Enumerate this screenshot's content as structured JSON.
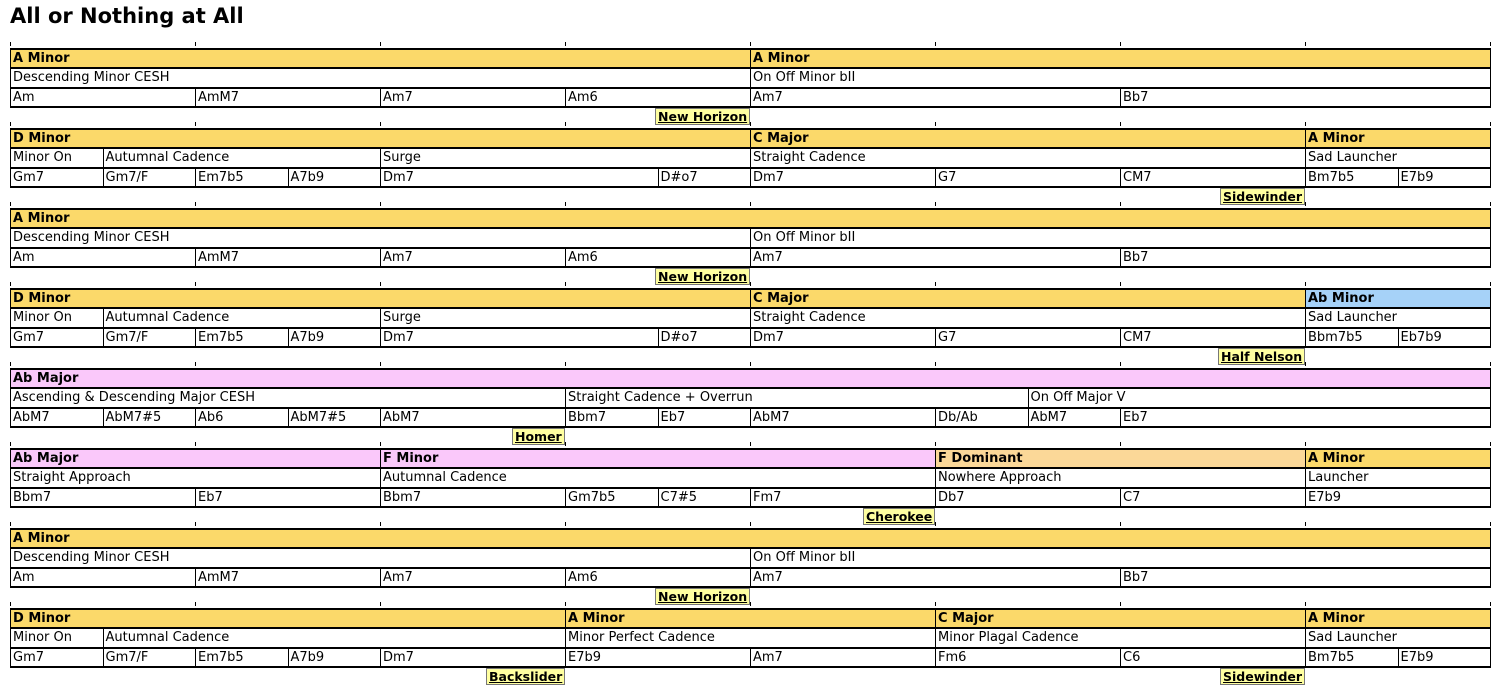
{
  "title": "All or Nothing at All",
  "colors": {
    "A Minor": "#fbd96a",
    "D Minor": "#fbd96a",
    "C Major": "#fbd96a",
    "Ab Minor": "#a6d2f8",
    "Ab Major": "#fac8fa",
    "F Minor": "#fac8fa",
    "F Dominant": "#fbd898"
  },
  "lines": [
    {
      "keys": [
        {
          "label": "A Minor",
          "span": 4
        },
        {
          "label": "A Minor",
          "span": 4
        }
      ],
      "bricks": [
        {
          "label": "Descending Minor CESH",
          "span": 4
        },
        {
          "label": "On Off Minor bII",
          "span": 4
        }
      ],
      "chords": [
        {
          "label": "Am",
          "span": 1
        },
        {
          "label": "AmM7",
          "span": 1
        },
        {
          "label": "Am7",
          "span": 1
        },
        {
          "label": "Am6",
          "span": 1
        },
        {
          "label": "Am7",
          "span": 2
        },
        {
          "label": "Bb7",
          "span": 2
        }
      ],
      "joins": [
        {
          "label": "New Horizon",
          "at": 4
        }
      ]
    },
    {
      "keys": [
        {
          "label": "D Minor",
          "span": 4
        },
        {
          "label": "C Major",
          "span": 3
        },
        {
          "label": "A Minor",
          "span": 1
        }
      ],
      "bricks": [
        {
          "label": "Minor On",
          "span": 0.5
        },
        {
          "label": "Autumnal Cadence",
          "span": 1.5
        },
        {
          "label": "Surge",
          "span": 2
        },
        {
          "label": "Straight Cadence",
          "span": 3
        },
        {
          "label": "Sad Launcher",
          "span": 1
        }
      ],
      "chords": [
        {
          "label": "Gm7",
          "span": 0.5
        },
        {
          "label": "Gm7/F",
          "span": 0.5
        },
        {
          "label": "Em7b5",
          "span": 0.5
        },
        {
          "label": "A7b9",
          "span": 0.5
        },
        {
          "label": "Dm7",
          "span": 1.5
        },
        {
          "label": "D#o7",
          "span": 0.5
        },
        {
          "label": "Dm7",
          "span": 1
        },
        {
          "label": "G7",
          "span": 1
        },
        {
          "label": "CM7",
          "span": 1
        },
        {
          "label": "Bm7b5",
          "span": 0.5
        },
        {
          "label": "E7b9",
          "span": 0.5
        }
      ],
      "joins": [
        {
          "label": "Sidewinder",
          "at": 7
        }
      ]
    },
    {
      "keys": [
        {
          "label": "A Minor",
          "span": 8
        }
      ],
      "bricks": [
        {
          "label": "Descending Minor CESH",
          "span": 4
        },
        {
          "label": "On Off Minor bII",
          "span": 4
        }
      ],
      "chords": [
        {
          "label": "Am",
          "span": 1
        },
        {
          "label": "AmM7",
          "span": 1
        },
        {
          "label": "Am7",
          "span": 1
        },
        {
          "label": "Am6",
          "span": 1
        },
        {
          "label": "Am7",
          "span": 2
        },
        {
          "label": "Bb7",
          "span": 2
        }
      ],
      "joins": [
        {
          "label": "New Horizon",
          "at": 4
        }
      ]
    },
    {
      "keys": [
        {
          "label": "D Minor",
          "span": 4
        },
        {
          "label": "C Major",
          "span": 3
        },
        {
          "label": "Ab Minor",
          "span": 1
        }
      ],
      "bricks": [
        {
          "label": "Minor On",
          "span": 0.5
        },
        {
          "label": "Autumnal Cadence",
          "span": 1.5
        },
        {
          "label": "Surge",
          "span": 2
        },
        {
          "label": "Straight Cadence",
          "span": 3
        },
        {
          "label": "Sad Launcher",
          "span": 1
        }
      ],
      "chords": [
        {
          "label": "Gm7",
          "span": 0.5
        },
        {
          "label": "Gm7/F",
          "span": 0.5
        },
        {
          "label": "Em7b5",
          "span": 0.5
        },
        {
          "label": "A7b9",
          "span": 0.5
        },
        {
          "label": "Dm7",
          "span": 1.5
        },
        {
          "label": "D#o7",
          "span": 0.5
        },
        {
          "label": "Dm7",
          "span": 1
        },
        {
          "label": "G7",
          "span": 1
        },
        {
          "label": "CM7",
          "span": 1
        },
        {
          "label": "Bbm7b5",
          "span": 0.5
        },
        {
          "label": "Eb7b9",
          "span": 0.5
        }
      ],
      "joins": [
        {
          "label": "Half Nelson",
          "at": 7
        }
      ]
    },
    {
      "keys": [
        {
          "label": "Ab Major",
          "span": 8
        }
      ],
      "bricks": [
        {
          "label": "Ascending & Descending Major CESH",
          "span": 3
        },
        {
          "label": "Straight Cadence + Overrun",
          "span": 2.5
        },
        {
          "label": "On Off Major V",
          "span": 2.5
        }
      ],
      "chords": [
        {
          "label": "AbM7",
          "span": 0.5
        },
        {
          "label": "AbM7#5",
          "span": 0.5
        },
        {
          "label": "Ab6",
          "span": 0.5
        },
        {
          "label": "AbM7#5",
          "span": 0.5
        },
        {
          "label": "AbM7",
          "span": 1
        },
        {
          "label": "Bbm7",
          "span": 0.5
        },
        {
          "label": "Eb7",
          "span": 0.5
        },
        {
          "label": "AbM7",
          "span": 1
        },
        {
          "label": "Db/Ab",
          "span": 0.5
        },
        {
          "label": "AbM7",
          "span": 0.5
        },
        {
          "label": "Eb7",
          "span": 2
        }
      ],
      "joins": [
        {
          "label": "Homer",
          "at": 3
        }
      ]
    },
    {
      "keys": [
        {
          "label": "Ab Major",
          "span": 2
        },
        {
          "label": "F Minor",
          "span": 3
        },
        {
          "label": "F Dominant",
          "span": 2
        },
        {
          "label": "A Minor",
          "span": 1
        }
      ],
      "bricks": [
        {
          "label": "Straight Approach",
          "span": 2
        },
        {
          "label": "Autumnal Cadence",
          "span": 3
        },
        {
          "label": "Nowhere Approach",
          "span": 2
        },
        {
          "label": "Launcher",
          "span": 1
        }
      ],
      "chords": [
        {
          "label": "Bbm7",
          "span": 1
        },
        {
          "label": "Eb7",
          "span": 1
        },
        {
          "label": "Bbm7",
          "span": 1
        },
        {
          "label": "Gm7b5",
          "span": 0.5
        },
        {
          "label": "C7#5",
          "span": 0.5
        },
        {
          "label": "Fm7",
          "span": 1
        },
        {
          "label": "Db7",
          "span": 1
        },
        {
          "label": "C7",
          "span": 1
        },
        {
          "label": "E7b9",
          "span": 1
        }
      ],
      "joins": [
        {
          "label": "Cherokee",
          "at": 5
        }
      ]
    },
    {
      "keys": [
        {
          "label": "A Minor",
          "span": 8
        }
      ],
      "bricks": [
        {
          "label": "Descending Minor CESH",
          "span": 4
        },
        {
          "label": "On Off Minor bII",
          "span": 4
        }
      ],
      "chords": [
        {
          "label": "Am",
          "span": 1
        },
        {
          "label": "AmM7",
          "span": 1
        },
        {
          "label": "Am7",
          "span": 1
        },
        {
          "label": "Am6",
          "span": 1
        },
        {
          "label": "Am7",
          "span": 2
        },
        {
          "label": "Bb7",
          "span": 2
        }
      ],
      "joins": [
        {
          "label": "New Horizon",
          "at": 4
        }
      ]
    },
    {
      "keys": [
        {
          "label": "D Minor",
          "span": 3
        },
        {
          "label": "A Minor",
          "span": 2
        },
        {
          "label": "C Major",
          "span": 2
        },
        {
          "label": "A Minor",
          "span": 1
        }
      ],
      "bricks": [
        {
          "label": "Minor On",
          "span": 0.5
        },
        {
          "label": "Autumnal Cadence",
          "span": 2.5
        },
        {
          "label": "Minor Perfect Cadence",
          "span": 2
        },
        {
          "label": "Minor Plagal Cadence",
          "span": 2
        },
        {
          "label": "Sad Launcher",
          "span": 1
        }
      ],
      "chords": [
        {
          "label": "Gm7",
          "span": 0.5
        },
        {
          "label": "Gm7/F",
          "span": 0.5
        },
        {
          "label": "Em7b5",
          "span": 0.5
        },
        {
          "label": "A7b9",
          "span": 0.5
        },
        {
          "label": "Dm7",
          "span": 1
        },
        {
          "label": "E7b9",
          "span": 1
        },
        {
          "label": "Am7",
          "span": 1
        },
        {
          "label": "Fm6",
          "span": 1
        },
        {
          "label": "C6",
          "span": 1
        },
        {
          "label": "Bm7b5",
          "span": 0.5
        },
        {
          "label": "E7b9",
          "span": 0.5
        }
      ],
      "joins": [
        {
          "label": "Backslider",
          "at": 3
        },
        {
          "label": "Sidewinder",
          "at": 7
        }
      ]
    }
  ]
}
